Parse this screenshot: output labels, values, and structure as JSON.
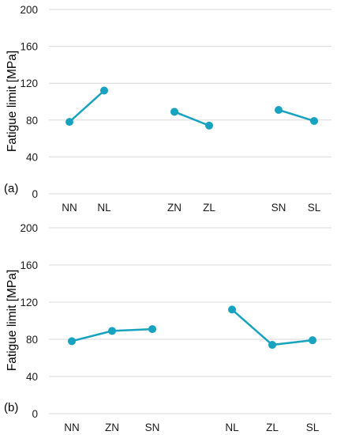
{
  "chart_data": [
    {
      "type": "line",
      "panel_label": "(a)",
      "ylabel": "Fatigue limit [MPa]",
      "xlabel": "",
      "ylim": [
        0,
        200
      ],
      "yticks": [
        0,
        40,
        80,
        120,
        160,
        200
      ],
      "grid": true,
      "line_color": "#17a2c0",
      "categories": [
        "NN",
        "NL",
        "",
        "ZN",
        "ZL",
        "",
        "SN",
        "SL"
      ],
      "series": [
        {
          "x": [
            "NN",
            "NL"
          ],
          "values": [
            78,
            112
          ]
        },
        {
          "x": [
            "ZN",
            "ZL"
          ],
          "values": [
            89,
            74
          ]
        },
        {
          "x": [
            "SN",
            "SL"
          ],
          "values": [
            91,
            79
          ]
        }
      ]
    },
    {
      "type": "line",
      "panel_label": "(b)",
      "ylabel": "Fatigue limit [MPa]",
      "xlabel": "",
      "ylim": [
        0,
        200
      ],
      "yticks": [
        0,
        40,
        80,
        120,
        160,
        200
      ],
      "grid": true,
      "line_color": "#17a2c0",
      "categories": [
        "NN",
        "ZN",
        "SN",
        "",
        "NL",
        "ZL",
        "SL"
      ],
      "series": [
        {
          "x": [
            "NN",
            "ZN",
            "SN"
          ],
          "values": [
            78,
            89,
            91
          ]
        },
        {
          "x": [
            "NL",
            "ZL",
            "SL"
          ],
          "values": [
            112,
            74,
            79
          ]
        }
      ]
    }
  ]
}
